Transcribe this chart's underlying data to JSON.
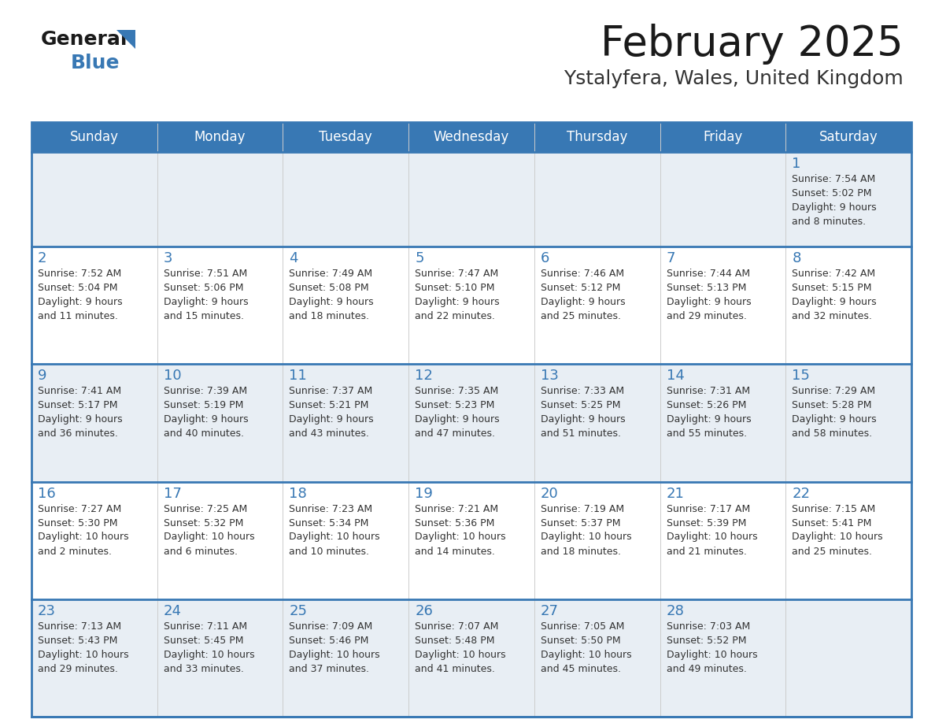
{
  "title": "February 2025",
  "subtitle": "Ystalyfera, Wales, United Kingdom",
  "header_bg": "#3878b4",
  "header_text": "#ffffff",
  "cell_bg_white": "#ffffff",
  "cell_bg_light": "#e8eef4",
  "border_color": "#3878b4",
  "day_names": [
    "Sunday",
    "Monday",
    "Tuesday",
    "Wednesday",
    "Thursday",
    "Friday",
    "Saturday"
  ],
  "title_color": "#1a1a1a",
  "subtitle_color": "#333333",
  "number_color": "#3878b4",
  "text_color": "#333333",
  "days": [
    {
      "date": 1,
      "row": 0,
      "col": 6,
      "sunrise": "7:54 AM",
      "sunset": "5:02 PM",
      "daylight_h": "9 hours",
      "daylight_m": "and 8 minutes."
    },
    {
      "date": 2,
      "row": 1,
      "col": 0,
      "sunrise": "7:52 AM",
      "sunset": "5:04 PM",
      "daylight_h": "9 hours",
      "daylight_m": "and 11 minutes."
    },
    {
      "date": 3,
      "row": 1,
      "col": 1,
      "sunrise": "7:51 AM",
      "sunset": "5:06 PM",
      "daylight_h": "9 hours",
      "daylight_m": "and 15 minutes."
    },
    {
      "date": 4,
      "row": 1,
      "col": 2,
      "sunrise": "7:49 AM",
      "sunset": "5:08 PM",
      "daylight_h": "9 hours",
      "daylight_m": "and 18 minutes."
    },
    {
      "date": 5,
      "row": 1,
      "col": 3,
      "sunrise": "7:47 AM",
      "sunset": "5:10 PM",
      "daylight_h": "9 hours",
      "daylight_m": "and 22 minutes."
    },
    {
      "date": 6,
      "row": 1,
      "col": 4,
      "sunrise": "7:46 AM",
      "sunset": "5:12 PM",
      "daylight_h": "9 hours",
      "daylight_m": "and 25 minutes."
    },
    {
      "date": 7,
      "row": 1,
      "col": 5,
      "sunrise": "7:44 AM",
      "sunset": "5:13 PM",
      "daylight_h": "9 hours",
      "daylight_m": "and 29 minutes."
    },
    {
      "date": 8,
      "row": 1,
      "col": 6,
      "sunrise": "7:42 AM",
      "sunset": "5:15 PM",
      "daylight_h": "9 hours",
      "daylight_m": "and 32 minutes."
    },
    {
      "date": 9,
      "row": 2,
      "col": 0,
      "sunrise": "7:41 AM",
      "sunset": "5:17 PM",
      "daylight_h": "9 hours",
      "daylight_m": "and 36 minutes."
    },
    {
      "date": 10,
      "row": 2,
      "col": 1,
      "sunrise": "7:39 AM",
      "sunset": "5:19 PM",
      "daylight_h": "9 hours",
      "daylight_m": "and 40 minutes."
    },
    {
      "date": 11,
      "row": 2,
      "col": 2,
      "sunrise": "7:37 AM",
      "sunset": "5:21 PM",
      "daylight_h": "9 hours",
      "daylight_m": "and 43 minutes."
    },
    {
      "date": 12,
      "row": 2,
      "col": 3,
      "sunrise": "7:35 AM",
      "sunset": "5:23 PM",
      "daylight_h": "9 hours",
      "daylight_m": "and 47 minutes."
    },
    {
      "date": 13,
      "row": 2,
      "col": 4,
      "sunrise": "7:33 AM",
      "sunset": "5:25 PM",
      "daylight_h": "9 hours",
      "daylight_m": "and 51 minutes."
    },
    {
      "date": 14,
      "row": 2,
      "col": 5,
      "sunrise": "7:31 AM",
      "sunset": "5:26 PM",
      "daylight_h": "9 hours",
      "daylight_m": "and 55 minutes."
    },
    {
      "date": 15,
      "row": 2,
      "col": 6,
      "sunrise": "7:29 AM",
      "sunset": "5:28 PM",
      "daylight_h": "9 hours",
      "daylight_m": "and 58 minutes."
    },
    {
      "date": 16,
      "row": 3,
      "col": 0,
      "sunrise": "7:27 AM",
      "sunset": "5:30 PM",
      "daylight_h": "10 hours",
      "daylight_m": "and 2 minutes."
    },
    {
      "date": 17,
      "row": 3,
      "col": 1,
      "sunrise": "7:25 AM",
      "sunset": "5:32 PM",
      "daylight_h": "10 hours",
      "daylight_m": "and 6 minutes."
    },
    {
      "date": 18,
      "row": 3,
      "col": 2,
      "sunrise": "7:23 AM",
      "sunset": "5:34 PM",
      "daylight_h": "10 hours",
      "daylight_m": "and 10 minutes."
    },
    {
      "date": 19,
      "row": 3,
      "col": 3,
      "sunrise": "7:21 AM",
      "sunset": "5:36 PM",
      "daylight_h": "10 hours",
      "daylight_m": "and 14 minutes."
    },
    {
      "date": 20,
      "row": 3,
      "col": 4,
      "sunrise": "7:19 AM",
      "sunset": "5:37 PM",
      "daylight_h": "10 hours",
      "daylight_m": "and 18 minutes."
    },
    {
      "date": 21,
      "row": 3,
      "col": 5,
      "sunrise": "7:17 AM",
      "sunset": "5:39 PM",
      "daylight_h": "10 hours",
      "daylight_m": "and 21 minutes."
    },
    {
      "date": 22,
      "row": 3,
      "col": 6,
      "sunrise": "7:15 AM",
      "sunset": "5:41 PM",
      "daylight_h": "10 hours",
      "daylight_m": "and 25 minutes."
    },
    {
      "date": 23,
      "row": 4,
      "col": 0,
      "sunrise": "7:13 AM",
      "sunset": "5:43 PM",
      "daylight_h": "10 hours",
      "daylight_m": "and 29 minutes."
    },
    {
      "date": 24,
      "row": 4,
      "col": 1,
      "sunrise": "7:11 AM",
      "sunset": "5:45 PM",
      "daylight_h": "10 hours",
      "daylight_m": "and 33 minutes."
    },
    {
      "date": 25,
      "row": 4,
      "col": 2,
      "sunrise": "7:09 AM",
      "sunset": "5:46 PM",
      "daylight_h": "10 hours",
      "daylight_m": "and 37 minutes."
    },
    {
      "date": 26,
      "row": 4,
      "col": 3,
      "sunrise": "7:07 AM",
      "sunset": "5:48 PM",
      "daylight_h": "10 hours",
      "daylight_m": "and 41 minutes."
    },
    {
      "date": 27,
      "row": 4,
      "col": 4,
      "sunrise": "7:05 AM",
      "sunset": "5:50 PM",
      "daylight_h": "10 hours",
      "daylight_m": "and 45 minutes."
    },
    {
      "date": 28,
      "row": 4,
      "col": 5,
      "sunrise": "7:03 AM",
      "sunset": "5:52 PM",
      "daylight_h": "10 hours",
      "daylight_m": "and 49 minutes."
    }
  ]
}
